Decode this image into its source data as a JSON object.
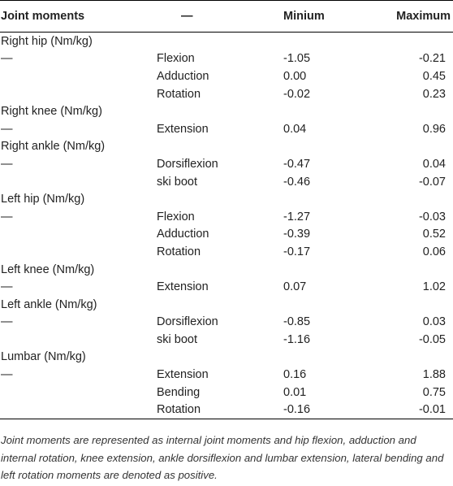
{
  "table": {
    "headers": [
      "Joint moments",
      "—",
      "Minium",
      "Maximum"
    ],
    "groups": [
      {
        "name": "Right hip (Nm/kg)",
        "rows": [
          {
            "dash": "—",
            "label": "Flexion",
            "min": "-1.05",
            "max": "-0.21"
          },
          {
            "dash": "",
            "label": "Adduction",
            "min": "0.00",
            "max": "0.45"
          },
          {
            "dash": "",
            "label": "Rotation",
            "min": "-0.02",
            "max": "0.23"
          }
        ]
      },
      {
        "name": "Right knee (Nm/kg)",
        "rows": [
          {
            "dash": "—",
            "label": "Extension",
            "min": "0.04",
            "max": "0.96"
          }
        ]
      },
      {
        "name": "Right ankle (Nm/kg)",
        "rows": [
          {
            "dash": "—",
            "label": "Dorsiflexion",
            "min": "-0.47",
            "max": "0.04"
          },
          {
            "dash": "",
            "label": "ski boot",
            "min": "-0.46",
            "max": "-0.07"
          }
        ]
      },
      {
        "name": "Left hip (Nm/kg)",
        "rows": [
          {
            "dash": "—",
            "label": "Flexion",
            "min": "-1.27",
            "max": "-0.03"
          },
          {
            "dash": "",
            "label": "Adduction",
            "min": "-0.39",
            "max": "0.52"
          },
          {
            "dash": "",
            "label": "Rotation",
            "min": "-0.17",
            "max": "0.06"
          }
        ]
      },
      {
        "name": "Left knee (Nm/kg)",
        "rows": [
          {
            "dash": "—",
            "label": "Extension",
            "min": "0.07",
            "max": "1.02"
          }
        ]
      },
      {
        "name": "Left ankle (Nm/kg)",
        "rows": [
          {
            "dash": "—",
            "label": "Dorsiflexion",
            "min": "-0.85",
            "max": "0.03"
          },
          {
            "dash": "",
            "label": "ski boot",
            "min": "-1.16",
            "max": "-0.05"
          }
        ]
      },
      {
        "name": "Lumbar (Nm/kg)",
        "rows": [
          {
            "dash": "—",
            "label": "Extension",
            "min": "0.16",
            "max": "1.88"
          },
          {
            "dash": "",
            "label": "Bending",
            "min": "0.01",
            "max": "0.75"
          },
          {
            "dash": "",
            "label": "Rotation",
            "min": "-0.16",
            "max": "-0.01"
          }
        ]
      }
    ]
  },
  "footnote": "Joint moments are represented as internal joint moments and hip flexion, adduction and internal rotation, knee extension, ankle dorsiflexion and lumbar extension, lateral bending and left rotation moments are denoted as positive."
}
